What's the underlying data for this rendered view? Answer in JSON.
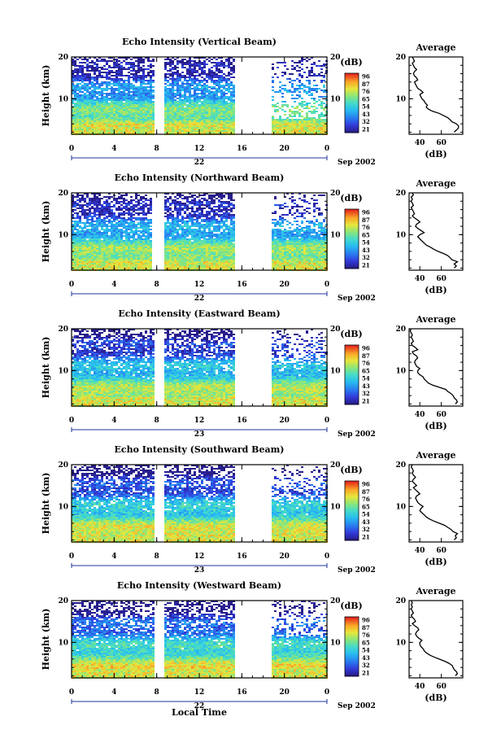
{
  "figure": {
    "shared_xlabel": "Local Time",
    "date_suffix": "Sep 2002",
    "cbar_unit": "(dB)",
    "avg_title": "Average",
    "avg_xlabel": "(dB)",
    "ylabel": "Height (km)"
  },
  "chart_data": [
    {
      "type": "heatmap",
      "title": "Echo Intensity (Vertical Beam)",
      "xlabel": "Local Time",
      "ylabel": "Height (km)",
      "x_ticks": [
        "0",
        "4",
        "8",
        "12",
        "16",
        "20",
        "0"
      ],
      "xlim": [
        0,
        24
      ],
      "y_ticks": [
        "10",
        "20"
      ],
      "ylim": [
        1.5,
        20
      ],
      "day_label": "22",
      "data_gaps": [
        [
          7.8,
          8.6
        ],
        [
          15.3,
          18.7
        ]
      ],
      "colorbar": {
        "label": "(dB)",
        "ticks": [
          "96",
          "87",
          "76",
          "65",
          "54",
          "43",
          "32",
          "21"
        ]
      },
      "average_profile": {
        "title": "Average",
        "xlabel": "(dB)",
        "x_ticks": [
          "40",
          "60"
        ],
        "xlim": [
          30,
          80
        ],
        "y_ticks": [
          "10",
          "20"
        ],
        "ylim": [
          1.5,
          20
        ],
        "heights": [
          2,
          2.5,
          3,
          3.5,
          4,
          4.5,
          5,
          5.5,
          6,
          6.5,
          7,
          7.5,
          8,
          8.5,
          9,
          9.5,
          10,
          10.5,
          11,
          11.5,
          12,
          12.5,
          13,
          13.5,
          14,
          14.5,
          15,
          15.5,
          16,
          16.5,
          17,
          17.5,
          18,
          18.5,
          19,
          19.5,
          20
        ],
        "values": [
          72,
          74,
          76,
          76,
          74,
          70,
          68,
          66,
          62,
          58,
          52,
          48,
          46,
          47,
          45,
          44,
          42,
          41,
          40,
          43,
          41,
          38,
          37,
          36,
          35,
          38,
          37,
          35,
          34,
          35,
          37,
          35,
          34,
          33,
          35,
          34,
          33
        ]
      }
    },
    {
      "type": "heatmap",
      "title": "Echo Intensity (Northward Beam)",
      "xlabel": "Local Time",
      "ylabel": "Height (km)",
      "x_ticks": [
        "0",
        "4",
        "8",
        "12",
        "16",
        "20",
        "0"
      ],
      "xlim": [
        0,
        24
      ],
      "y_ticks": [
        "10",
        "20"
      ],
      "ylim": [
        1.5,
        20
      ],
      "day_label": "22",
      "data_gaps": [
        [
          7.6,
          8.7
        ],
        [
          15.3,
          18.7
        ]
      ],
      "colorbar": {
        "label": "(dB)",
        "ticks": [
          "96",
          "87",
          "76",
          "65",
          "54",
          "43",
          "32",
          "21"
        ]
      },
      "average_profile": {
        "title": "Average",
        "xlabel": "(dB)",
        "x_ticks": [
          "40",
          "60"
        ],
        "xlim": [
          30,
          80
        ],
        "heights": [
          2,
          2.5,
          3,
          3.5,
          4,
          4.5,
          5,
          5.5,
          6,
          6.5,
          7,
          7.5,
          8,
          8.5,
          9,
          9.5,
          10,
          10.5,
          11,
          11.5,
          12,
          12.5,
          13,
          13.5,
          14,
          14.5,
          15,
          15.5,
          16,
          16.5,
          17,
          17.5,
          18,
          18.5,
          19,
          19.5,
          20
        ],
        "values": [
          72,
          74,
          72,
          75,
          70,
          68,
          66,
          62,
          57,
          53,
          50,
          46,
          44,
          42,
          40,
          38,
          40,
          44,
          41,
          38,
          36,
          37,
          40,
          38,
          35,
          33,
          35,
          34,
          33,
          32,
          34,
          33,
          32,
          33,
          32,
          34,
          33
        ]
      }
    },
    {
      "type": "heatmap",
      "title": "Echo Intensity (Eastward Beam)",
      "xlabel": "Local Time",
      "ylabel": "Height (km)",
      "x_ticks": [
        "0",
        "4",
        "8",
        "12",
        "16",
        "20",
        "0"
      ],
      "xlim": [
        0,
        24
      ],
      "y_ticks": [
        "10",
        "20"
      ],
      "ylim": [
        1.5,
        20
      ],
      "day_label": "23",
      "data_gaps": [
        [
          7.9,
          8.6
        ],
        [
          15.3,
          18.7
        ]
      ],
      "colorbar": {
        "label": "(dB)",
        "ticks": [
          "96",
          "87",
          "76",
          "65",
          "54",
          "43",
          "32",
          "21"
        ]
      },
      "average_profile": {
        "title": "Average",
        "xlabel": "(dB)",
        "x_ticks": [
          "40",
          "60"
        ],
        "xlim": [
          30,
          80
        ],
        "heights": [
          2,
          2.5,
          3,
          3.5,
          4,
          4.5,
          5,
          5.5,
          6,
          6.5,
          7,
          7.5,
          8,
          8.5,
          9,
          9.5,
          10,
          10.5,
          11,
          11.5,
          12,
          12.5,
          13,
          13.5,
          14,
          14.5,
          15,
          15.5,
          16,
          16.5,
          17,
          17.5,
          18,
          18.5,
          19,
          19.5,
          20
        ],
        "values": [
          73,
          75,
          74,
          72,
          71,
          69,
          66,
          64,
          58,
          52,
          48,
          46,
          44,
          43,
          40,
          38,
          38,
          40,
          37,
          36,
          35,
          36,
          38,
          37,
          34,
          33,
          38,
          36,
          33,
          32,
          34,
          33,
          32,
          33,
          32,
          31,
          32
        ]
      }
    },
    {
      "type": "heatmap",
      "title": "Echo Intensity (Southward Beam)",
      "xlabel": "Local Time",
      "ylabel": "Height (km)",
      "x_ticks": [
        "0",
        "4",
        "8",
        "12",
        "16",
        "20",
        "0"
      ],
      "xlim": [
        0,
        24
      ],
      "y_ticks": [
        "10",
        "20"
      ],
      "ylim": [
        1.5,
        20
      ],
      "day_label": "23",
      "data_gaps": [
        [
          7.9,
          8.6
        ],
        [
          15.3,
          18.7
        ]
      ],
      "colorbar": {
        "label": "(dB)",
        "ticks": [
          "96",
          "87",
          "76",
          "65",
          "54",
          "43",
          "32",
          "21"
        ]
      },
      "average_profile": {
        "title": "Average",
        "xlabel": "(dB)",
        "x_ticks": [
          "40",
          "60"
        ],
        "xlim": [
          30,
          80
        ],
        "heights": [
          2,
          2.5,
          3,
          3.5,
          4,
          4.5,
          5,
          5.5,
          6,
          6.5,
          7,
          7.5,
          8,
          8.5,
          9,
          9.5,
          10,
          10.5,
          11,
          11.5,
          12,
          12.5,
          13,
          13.5,
          14,
          14.5,
          15,
          15.5,
          16,
          16.5,
          17,
          17.5,
          18,
          18.5,
          19,
          19.5,
          20
        ],
        "values": [
          72,
          74,
          73,
          75,
          71,
          69,
          66,
          63,
          58,
          53,
          49,
          46,
          44,
          42,
          40,
          41,
          43,
          40,
          38,
          37,
          36,
          37,
          40,
          38,
          36,
          34,
          37,
          35,
          33,
          34,
          36,
          34,
          33,
          34,
          33,
          32,
          33
        ]
      }
    },
    {
      "type": "heatmap",
      "title": "Echo Intensity (Westward Beam)",
      "xlabel": "Local Time",
      "ylabel": "Height (km)",
      "x_ticks": [
        "0",
        "4",
        "8",
        "12",
        "16",
        "20",
        "0"
      ],
      "xlim": [
        0,
        24
      ],
      "y_ticks": [
        "10",
        "20"
      ],
      "ylim": [
        1.5,
        20
      ],
      "day_label": "22",
      "data_gaps": [
        [
          7.8,
          8.6
        ],
        [
          15.3,
          18.7
        ]
      ],
      "colorbar": {
        "label": "(dB)",
        "ticks": [
          "96",
          "87",
          "76",
          "65",
          "54",
          "43",
          "32",
          "21"
        ]
      },
      "average_profile": {
        "title": "Average",
        "xlabel": "(dB)",
        "x_ticks": [
          "40",
          "60"
        ],
        "xlim": [
          30,
          80
        ],
        "heights": [
          2,
          2.5,
          3,
          3.5,
          4,
          4.5,
          5,
          5.5,
          6,
          6.5,
          7,
          7.5,
          8,
          8.5,
          9,
          9.5,
          10,
          10.5,
          11,
          11.5,
          12,
          12.5,
          13,
          13.5,
          14,
          14.5,
          15,
          15.5,
          16,
          16.5,
          17,
          17.5,
          18,
          18.5,
          19,
          19.5,
          20
        ],
        "values": [
          73,
          75,
          74,
          72,
          71,
          70,
          67,
          63,
          58,
          53,
          49,
          46,
          44,
          43,
          41,
          40,
          40,
          42,
          39,
          37,
          36,
          37,
          39,
          38,
          35,
          33,
          36,
          35,
          33,
          32,
          34,
          33,
          32,
          33,
          32,
          33,
          32
        ]
      }
    }
  ]
}
